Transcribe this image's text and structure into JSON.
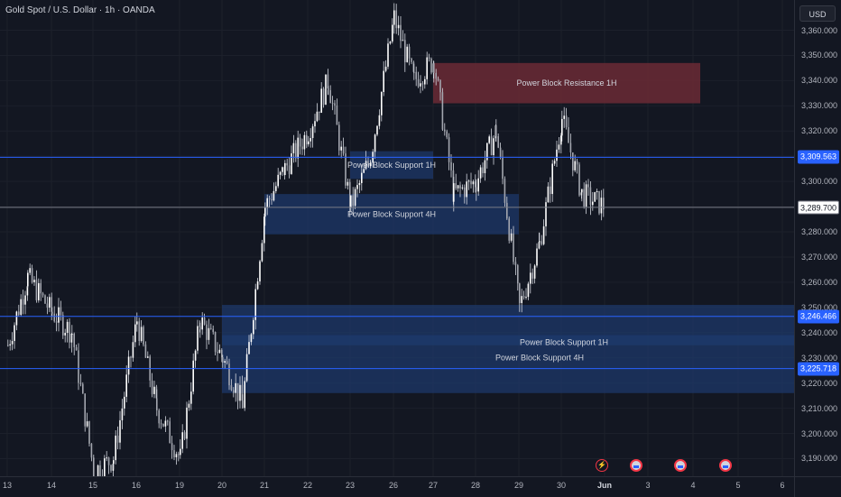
{
  "header": {
    "title": "Gold Spot / U.S. Dollar · 1h · OANDA",
    "currency_button": "USD"
  },
  "price_axis": {
    "ticks": [
      "3,360.000",
      "3,350.000",
      "3,340.000",
      "3,330.000",
      "3,320.000",
      "3,310.000",
      "3,300.000",
      "3,290.000",
      "3,280.000",
      "3,270.000",
      "3,260.000",
      "3,250.000",
      "3,240.000",
      "3,230.000",
      "3,220.000",
      "3,210.000",
      "3,200.000",
      "3,190.000"
    ],
    "tick_values": [
      3360,
      3350,
      3340,
      3330,
      3320,
      3310,
      3300,
      3290,
      3280,
      3270,
      3260,
      3250,
      3240,
      3230,
      3220,
      3210,
      3200,
      3190
    ]
  },
  "time_axis": {
    "labels": [
      "13",
      "14",
      "15",
      "16",
      "19",
      "20",
      "21",
      "22",
      "23",
      "26",
      "27",
      "28",
      "29",
      "30",
      "Jun",
      "3",
      "4",
      "5",
      "6"
    ]
  },
  "badges": [
    {
      "text": "3,309.563",
      "value": 3309.563,
      "style": "blue"
    },
    {
      "text": "3,289.700",
      "value": 3289.7,
      "style": "white"
    },
    {
      "text": "3,246.466",
      "value": 3246.466,
      "style": "blue"
    },
    {
      "text": "3,225.718",
      "value": 3225.718,
      "style": "blue"
    }
  ],
  "zones": [
    {
      "label": "Power Block Resistance  1H",
      "top": 3347,
      "bottom": 3331,
      "from": "27",
      "to": "4",
      "kind": "resistance"
    },
    {
      "label": "Power Block Support 1H",
      "top": 3312,
      "bottom": 3301,
      "from": "23",
      "to": "27",
      "kind": "support"
    },
    {
      "label": "Power Block Support 4H",
      "top": 3295,
      "bottom": 3279,
      "from": "21",
      "to": "29",
      "kind": "support"
    },
    {
      "label": "Power Block Support 1H",
      "top": 3251,
      "bottom": 3235,
      "from": "20",
      "to": "Jun+",
      "kind": "support"
    },
    {
      "label": "Power Block Support 4H",
      "top": 3239,
      "bottom": 3216,
      "from": "20",
      "to": "Jun+",
      "kind": "support"
    }
  ],
  "events": [
    {
      "icon": "lightning-icon",
      "at": "Jun-"
    },
    {
      "icon": "us-flag-icon",
      "at": "Jun+"
    },
    {
      "icon": "us-flag-icon",
      "at": "4-"
    },
    {
      "icon": "us-flag-icon",
      "at": "5-"
    }
  ],
  "chart_data": {
    "type": "candlestick",
    "title": "Gold Spot / U.S. Dollar · 1h · OANDA",
    "ylim": [
      3183,
      3372
    ],
    "y_unit": "USD",
    "colors": {
      "up": "#ffffff",
      "down": "#ffffff",
      "zone_support": "#1e3a6e",
      "zone_resistance": "#6b2a35",
      "line": "#2962ff"
    },
    "horizontal_lines": [
      3309.563,
      3289.7,
      3246.466,
      3225.718
    ],
    "close_path": [
      [
        "13",
        3235
      ],
      [
        "13",
        3262
      ],
      [
        "14",
        3248
      ],
      [
        "14",
        3240
      ],
      [
        "15",
        3185
      ],
      [
        "15",
        3190
      ],
      [
        "16",
        3245
      ],
      [
        "16",
        3210
      ],
      [
        "19",
        3190
      ],
      [
        "19",
        3245
      ],
      [
        "20",
        3230
      ],
      [
        "20",
        3212
      ],
      [
        "21",
        3290
      ],
      [
        "21",
        3305
      ],
      [
        "22",
        3320
      ],
      [
        "22",
        3340
      ],
      [
        "23",
        3290
      ],
      [
        "23",
        3310
      ],
      [
        "26",
        3365
      ],
      [
        "26",
        3340
      ],
      [
        "27",
        3348
      ],
      [
        "27",
        3295
      ],
      [
        "28",
        3300
      ],
      [
        "28",
        3320
      ],
      [
        "29",
        3250
      ],
      [
        "29",
        3275
      ],
      [
        "30",
        3325
      ],
      [
        "30",
        3295
      ],
      [
        "Jun",
        3290
      ]
    ]
  }
}
